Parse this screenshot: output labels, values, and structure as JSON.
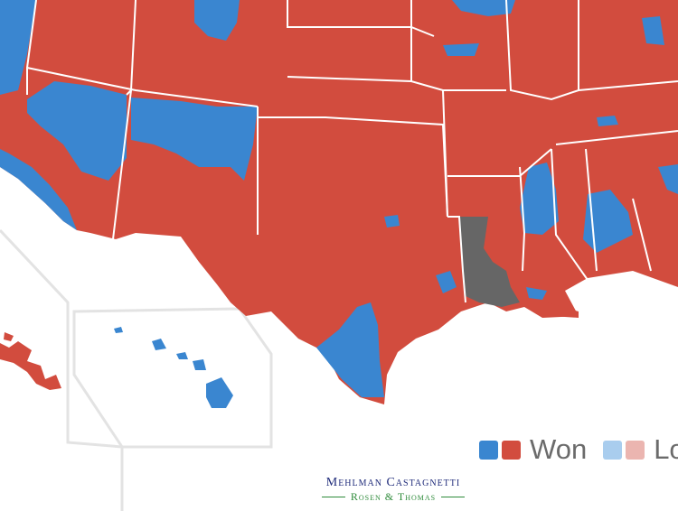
{
  "map": {
    "colors": {
      "won_blue": "#3a86d0",
      "won_red": "#d24c3e",
      "lost_blue": "#a9cdee",
      "lost_red": "#ebb5b0",
      "undecided": "#666666",
      "border": "#ffffff",
      "inset_border": "#e3e3e3",
      "background": "#ffffff"
    },
    "regions": [
      "west-coast-blue-strip",
      "mountain-west-red",
      "arizona",
      "new-mexico",
      "oklahoma",
      "texas",
      "south-texas-blue",
      "louisiana-undecided",
      "mississippi-blue",
      "alabama",
      "hawaii-inset",
      "alaska-inset"
    ]
  },
  "legend": {
    "items": [
      {
        "label": "Won",
        "colors": [
          "#3a86d0",
          "#d24c3e"
        ]
      },
      {
        "label": "Lost",
        "colors": [
          "#a9cdee",
          "#ebb5b0"
        ]
      }
    ]
  },
  "logo": {
    "line1": "Mehlman Castagnetti",
    "line2": "Rosen & Thomas"
  }
}
